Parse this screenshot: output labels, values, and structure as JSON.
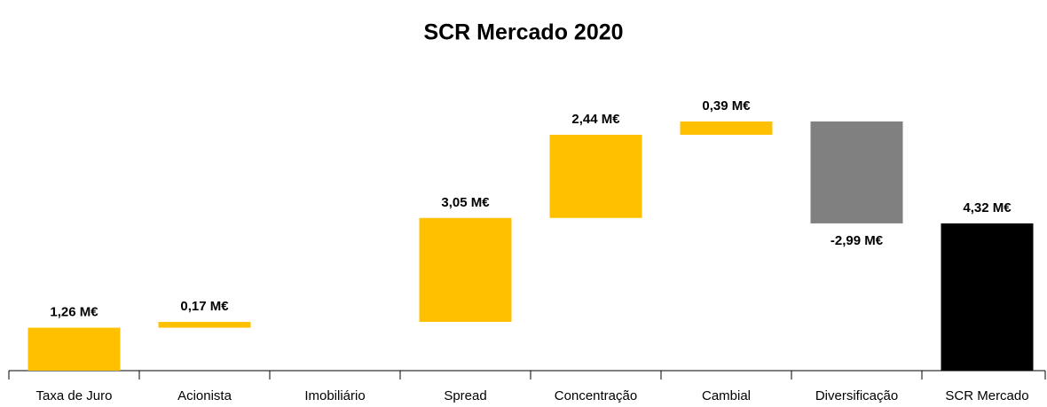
{
  "chart_data": {
    "type": "waterfall",
    "title": "SCR Mercado 2020",
    "categories": [
      "Taxa de Juro",
      "Acionista",
      "Imobiliário",
      "Spread",
      "Concentração",
      "Cambial",
      "Diversificação",
      "SCR Mercado"
    ],
    "values": [
      1.26,
      0.17,
      0,
      3.05,
      2.44,
      0.39,
      -2.99,
      4.32
    ],
    "value_labels": [
      "1,26 M€",
      "0,17 M€",
      null,
      "3,05 M€",
      "2,44 M€",
      "0,39 M€",
      "-2,99 M€",
      "4,32 M€"
    ],
    "measures": [
      "relative",
      "relative",
      "relative",
      "relative",
      "relative",
      "relative",
      "relative",
      "total"
    ],
    "increase_color": "#ffc000",
    "decrease_color": "#808080",
    "total_color": "#000000"
  }
}
